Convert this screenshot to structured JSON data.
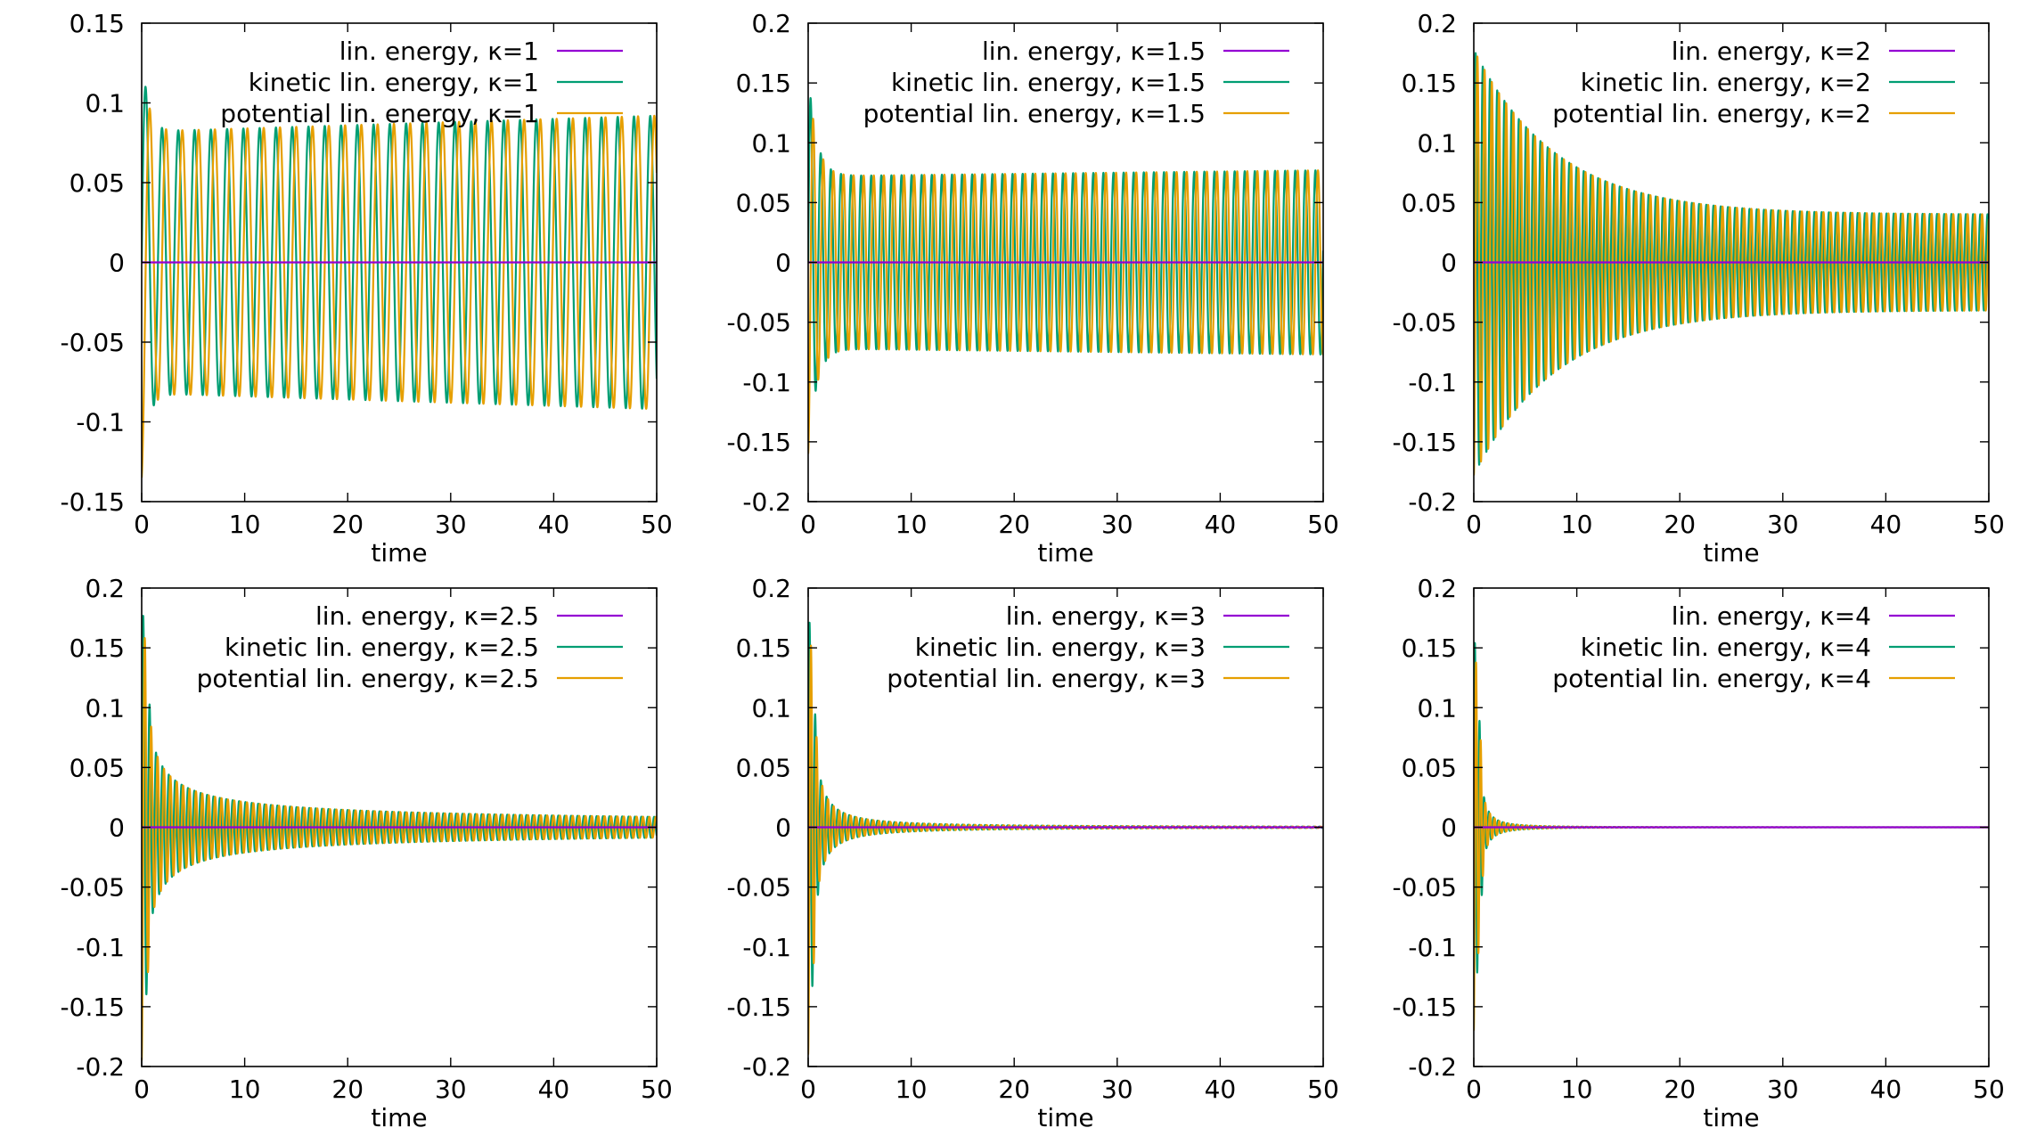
{
  "colors": {
    "lin": "#9400d3",
    "kinetic": "#009e73",
    "potential": "#e69f00",
    "axes": "#000000",
    "background": "#ffffff"
  },
  "chart_data": [
    {
      "type": "line",
      "kappa": 1,
      "xlabel": "time",
      "ylabel": "",
      "xlim": [
        0,
        50
      ],
      "ylim": [
        -0.15,
        0.15
      ],
      "xticks": [
        "0",
        "10",
        "20",
        "30",
        "40",
        "50"
      ],
      "yticks": [
        "-0.15",
        "-0.1",
        "-0.05",
        "0",
        "0.05",
        "0.1",
        "0.15"
      ],
      "legend_position": "top-right",
      "grid": false,
      "series": [
        {
          "name": "lin. energy, κ=1",
          "color": "#9400d3",
          "form": "constant",
          "value": 0
        },
        {
          "name": "kinetic lin. energy, κ=1",
          "color": "#009e73",
          "form": "damped_oscillation",
          "amplitude_initial": 0.135,
          "amplitude_final": 0.082,
          "decay_time": 0.6,
          "growth_per_unit_time": 0.0002,
          "period": 1.58,
          "phase": "kinetic"
        },
        {
          "name": "potential lin. energy, κ=1",
          "color": "#e69f00",
          "form": "damped_oscillation",
          "amplitude_initial": 0.135,
          "amplitude_final": 0.082,
          "decay_time": 0.6,
          "growth_per_unit_time": 0.0002,
          "period": 1.58,
          "phase": "potential"
        }
      ]
    },
    {
      "type": "line",
      "kappa": 1.5,
      "xlabel": "time",
      "ylabel": "",
      "xlim": [
        0,
        50
      ],
      "ylim": [
        -0.2,
        0.2
      ],
      "xticks": [
        "0",
        "10",
        "20",
        "30",
        "40",
        "50"
      ],
      "yticks": [
        "-0.2",
        "-0.15",
        "-0.1",
        "-0.05",
        "0",
        "0.05",
        "0.1",
        "0.15",
        "0.2"
      ],
      "legend_position": "top-right",
      "grid": false,
      "series": [
        {
          "name": "lin. energy, κ=1.5",
          "color": "#9400d3",
          "form": "constant",
          "value": 0
        },
        {
          "name": "kinetic lin. energy, κ=1.5",
          "color": "#009e73",
          "form": "damped_oscillation",
          "amplitude_initial": 0.16,
          "amplitude_final": 0.072,
          "decay_time": 0.8,
          "growth_per_unit_time": 0.0001,
          "period": 0.98,
          "phase": "kinetic"
        },
        {
          "name": "potential lin. energy, κ=1.5",
          "color": "#e69f00",
          "form": "damped_oscillation",
          "amplitude_initial": 0.16,
          "amplitude_final": 0.072,
          "decay_time": 0.8,
          "growth_per_unit_time": 0.0001,
          "period": 0.98,
          "phase": "potential"
        }
      ]
    },
    {
      "type": "line",
      "kappa": 2,
      "xlabel": "time",
      "ylabel": "",
      "xlim": [
        0,
        50
      ],
      "ylim": [
        -0.2,
        0.2
      ],
      "xticks": [
        "0",
        "10",
        "20",
        "30",
        "40",
        "50"
      ],
      "yticks": [
        "-0.2",
        "-0.15",
        "-0.1",
        "-0.05",
        "0",
        "0.05",
        "0.1",
        "0.15",
        "0.2"
      ],
      "legend_position": "top-right",
      "grid": false,
      "series": [
        {
          "name": "lin. energy, κ=2",
          "color": "#9400d3",
          "form": "constant",
          "value": 0
        },
        {
          "name": "kinetic lin. energy, κ=2",
          "color": "#009e73",
          "form": "damped_oscillation",
          "amplitude_initial": 0.178,
          "amplitude_final": 0.04,
          "decay_time": 8.0,
          "growth_per_unit_time": 0,
          "period": 0.7,
          "phase": "kinetic"
        },
        {
          "name": "potential lin. energy, κ=2",
          "color": "#e69f00",
          "form": "damped_oscillation",
          "amplitude_initial": 0.178,
          "amplitude_final": 0.04,
          "decay_time": 8.0,
          "growth_per_unit_time": 0,
          "period": 0.7,
          "phase": "potential"
        }
      ]
    },
    {
      "type": "line",
      "kappa": 2.5,
      "xlabel": "time",
      "ylabel": "",
      "xlim": [
        0,
        50
      ],
      "ylim": [
        -0.2,
        0.2
      ],
      "xticks": [
        "0",
        "10",
        "20",
        "30",
        "40",
        "50"
      ],
      "yticks": [
        "-0.2",
        "-0.15",
        "-0.1",
        "-0.05",
        "0",
        "0.05",
        "0.1",
        "0.15",
        "0.2"
      ],
      "legend_position": "top-right",
      "grid": false,
      "series": [
        {
          "name": "lin. energy, κ=2.5",
          "color": "#9400d3",
          "form": "constant",
          "value": 0
        },
        {
          "name": "kinetic lin. energy, κ=2.5",
          "color": "#009e73",
          "form": "power_decay",
          "amplitude_initial": 0.195,
          "amplitude_at_t1": 0.075,
          "exponent": 0.55,
          "period": 0.62,
          "phase": "kinetic"
        },
        {
          "name": "potential lin. energy, κ=2.5",
          "color": "#e69f00",
          "form": "power_decay",
          "amplitude_initial": 0.195,
          "amplitude_at_t1": 0.075,
          "exponent": 0.55,
          "period": 0.62,
          "phase": "potential"
        }
      ]
    },
    {
      "type": "line",
      "kappa": 3,
      "xlabel": "time",
      "ylabel": "",
      "xlim": [
        0,
        50
      ],
      "ylim": [
        -0.2,
        0.2
      ],
      "xticks": [
        "0",
        "10",
        "20",
        "30",
        "40",
        "50"
      ],
      "yticks": [
        "-0.2",
        "-0.15",
        "-0.1",
        "-0.05",
        "0",
        "0.05",
        "0.1",
        "0.15",
        "0.2"
      ],
      "legend_position": "top-right",
      "grid": false,
      "series": [
        {
          "name": "lin. energy, κ=3",
          "color": "#9400d3",
          "form": "constant",
          "value": 0
        },
        {
          "name": "kinetic lin. energy, κ=3",
          "color": "#009e73",
          "form": "power_decay",
          "amplitude_initial": 0.19,
          "amplitude_at_t1": 0.05,
          "exponent": 1.15,
          "period": 0.55,
          "phase": "kinetic"
        },
        {
          "name": "potential lin. energy, κ=3",
          "color": "#e69f00",
          "form": "power_decay",
          "amplitude_initial": 0.19,
          "amplitude_at_t1": 0.05,
          "exponent": 1.15,
          "period": 0.55,
          "phase": "potential"
        }
      ]
    },
    {
      "type": "line",
      "kappa": 4,
      "xlabel": "time",
      "ylabel": "",
      "xlim": [
        0,
        50
      ],
      "ylim": [
        -0.2,
        0.2
      ],
      "xticks": [
        "0",
        "10",
        "20",
        "30",
        "40",
        "50"
      ],
      "yticks": [
        "-0.2",
        "-0.15",
        "-0.1",
        "-0.05",
        "0",
        "0.05",
        "0.1",
        "0.15",
        "0.2"
      ],
      "legend_position": "top-right",
      "grid": false,
      "series": [
        {
          "name": "lin. energy, κ=4",
          "color": "#9400d3",
          "form": "constant",
          "value": 0
        },
        {
          "name": "kinetic lin. energy, κ=4",
          "color": "#009e73",
          "form": "power_decay",
          "amplitude_initial": 0.17,
          "amplitude_at_t1": 0.025,
          "exponent": 1.7,
          "period": 0.45,
          "phase": "kinetic"
        },
        {
          "name": "potential lin. energy, κ=4",
          "color": "#e69f00",
          "form": "power_decay",
          "amplitude_initial": 0.17,
          "amplitude_at_t1": 0.025,
          "exponent": 1.7,
          "period": 0.45,
          "phase": "potential"
        }
      ]
    }
  ]
}
